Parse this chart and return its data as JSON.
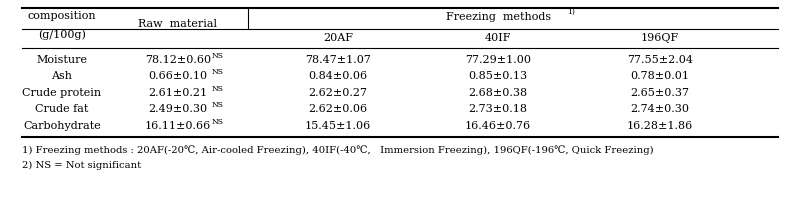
{
  "title_row1": "composition",
  "title_row2": "(g/100g)",
  "col2_header": "Raw  material",
  "freezing_header": "Freezing  methods",
  "freezing_superscript": "1)",
  "sub_headers": [
    "20AF",
    "40IF",
    "196QF"
  ],
  "row_labels": [
    "Moisture",
    "Ash",
    "Crude protein",
    "Crude fat",
    "Carbohydrate"
  ],
  "raw_material": [
    "78.12±0.60",
    "0.66±0.10",
    "2.61±0.21",
    "2.49±0.30",
    "16.11±0.66"
  ],
  "raw_material_super": [
    "NS",
    "NS",
    "NS",
    "NS",
    "NS"
  ],
  "col_20AF": [
    "78.47±1.07",
    "0.84±0.06",
    "2.62±0.27",
    "2.62±0.06",
    "15.45±1.06"
  ],
  "col_40IF": [
    "77.29±1.00",
    "0.85±0.13",
    "2.68±0.38",
    "2.73±0.18",
    "16.46±0.76"
  ],
  "col_196QF": [
    "77.55±2.04",
    "0.78±0.01",
    "2.65±0.37",
    "2.74±0.30",
    "16.28±1.86"
  ],
  "footnote1": "1) Freezing methods : 20AF(-20℃, Air-cooled Freezing), 40IF(-40℃,   Immersion Freezing), 196QF(-196℃, Quick Freezing)",
  "footnote2": "2) NS = Not significant",
  "bg_color": "#ffffff",
  "text_color": "#000000",
  "font_size": 8.0,
  "small_font_size": 5.5,
  "footnote_font_size": 7.2
}
